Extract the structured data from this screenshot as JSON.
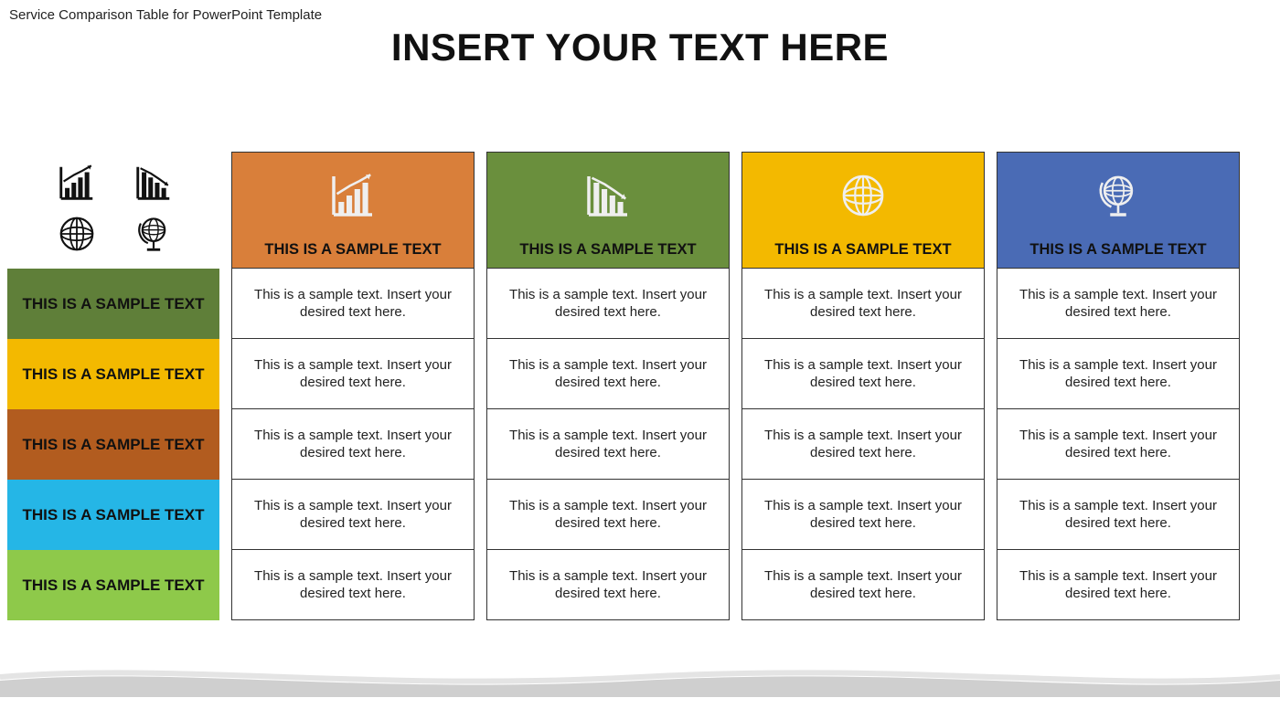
{
  "meta": {
    "subtitle": "Service Comparison Table for PowerPoint Template",
    "title": "INSERT YOUR TEXT HERE"
  },
  "colors": {
    "col1": "#d97f3a",
    "col2": "#6a8f3d",
    "col3": "#f3b900",
    "col4": "#4a6bb5",
    "row1": "#5f7f39",
    "row2": "#f3b900",
    "row3": "#b25c1f",
    "row4": "#25b6e6",
    "row5": "#8ec94a",
    "icon_light": "#efefef",
    "icon_dark": "#111111",
    "cell_text": "#222222",
    "wave": "#cfcfcf",
    "header_text": "#111111"
  },
  "columns": [
    {
      "label": "THIS IS A SAMPLE TEXT",
      "icon": "chart-up"
    },
    {
      "label": "THIS IS A SAMPLE TEXT",
      "icon": "chart-down"
    },
    {
      "label": "THIS IS A SAMPLE TEXT",
      "icon": "globe"
    },
    {
      "label": "THIS IS A SAMPLE TEXT",
      "icon": "globe-stand"
    }
  ],
  "rows": [
    {
      "label": "THIS IS A SAMPLE TEXT"
    },
    {
      "label": "THIS IS A SAMPLE TEXT"
    },
    {
      "label": "THIS IS A SAMPLE TEXT"
    },
    {
      "label": "THIS IS A SAMPLE TEXT"
    },
    {
      "label": "THIS IS A SAMPLE TEXT"
    }
  ],
  "cell_text": "This is a sample text. Insert your desired text here.",
  "cluster_icons": [
    "chart-up",
    "chart-down",
    "globe",
    "globe-stand"
  ]
}
